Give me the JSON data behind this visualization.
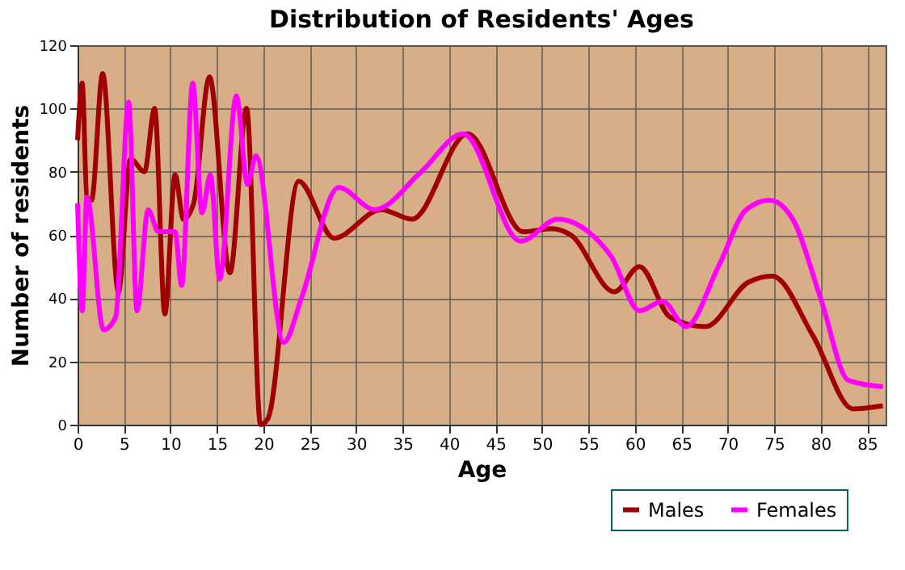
{
  "chart_data": {
    "type": "line",
    "title": "Distribution of Residents' Ages",
    "xlabel": "Age",
    "ylabel": "Number of residents",
    "xlim": [
      0,
      87
    ],
    "xticks": [
      0,
      5,
      10,
      15,
      20,
      25,
      30,
      35,
      40,
      45,
      50,
      55,
      60,
      65,
      70,
      75,
      80,
      85
    ],
    "ylim": [
      0,
      120
    ],
    "yticks": [
      0,
      20,
      40,
      60,
      80,
      100,
      120
    ],
    "grid": true,
    "legend": "bottom right",
    "series": [
      {
        "name": "Males",
        "color": "#a00000",
        "x": [
          0,
          0.5,
          1,
          1.5,
          2.7,
          4.4,
          5.7,
          7.2,
          8.3,
          9.4,
          10.5,
          11.4,
          12.5,
          14.2,
          16.4,
          18.2,
          19.7,
          20.5,
          23.8,
          27.6,
          32.7,
          36,
          42,
          48,
          51,
          53.1,
          57.8,
          60.5,
          63.8,
          67.6,
          72.2,
          74.8,
          79.2,
          83.5,
          86.7
        ],
        "values": [
          90,
          108,
          72,
          71,
          111,
          42,
          84,
          80,
          100,
          35,
          79,
          65,
          70,
          110,
          48,
          100,
          0,
          2,
          77,
          59,
          68,
          65,
          92,
          61,
          62,
          60,
          42,
          50,
          34,
          31,
          45,
          47,
          28,
          5,
          6
        ]
      },
      {
        "name": "Females",
        "color": "#ff00ff",
        "x": [
          0,
          0.5,
          1,
          2.8,
          4.1,
          5.5,
          6.4,
          7.6,
          8.7,
          10.5,
          11.2,
          12.4,
          13.4,
          14.3,
          15.3,
          17.1,
          18.3,
          19.2,
          22.2,
          24.1,
          28.1,
          32,
          37,
          41.5,
          47.7,
          51.7,
          55,
          57.5,
          60.5,
          63,
          65.5,
          69,
          72,
          74.5,
          77,
          80,
          83,
          86.7
        ],
        "values": [
          70,
          36,
          72,
          30,
          34,
          102,
          36,
          68,
          61,
          61,
          44,
          108,
          67,
          79,
          46,
          104,
          76,
          85,
          26,
          40,
          75,
          68,
          80,
          92,
          58,
          65,
          61,
          53,
          36,
          39,
          31,
          50,
          68,
          71,
          65,
          40,
          14,
          12
        ]
      }
    ]
  }
}
